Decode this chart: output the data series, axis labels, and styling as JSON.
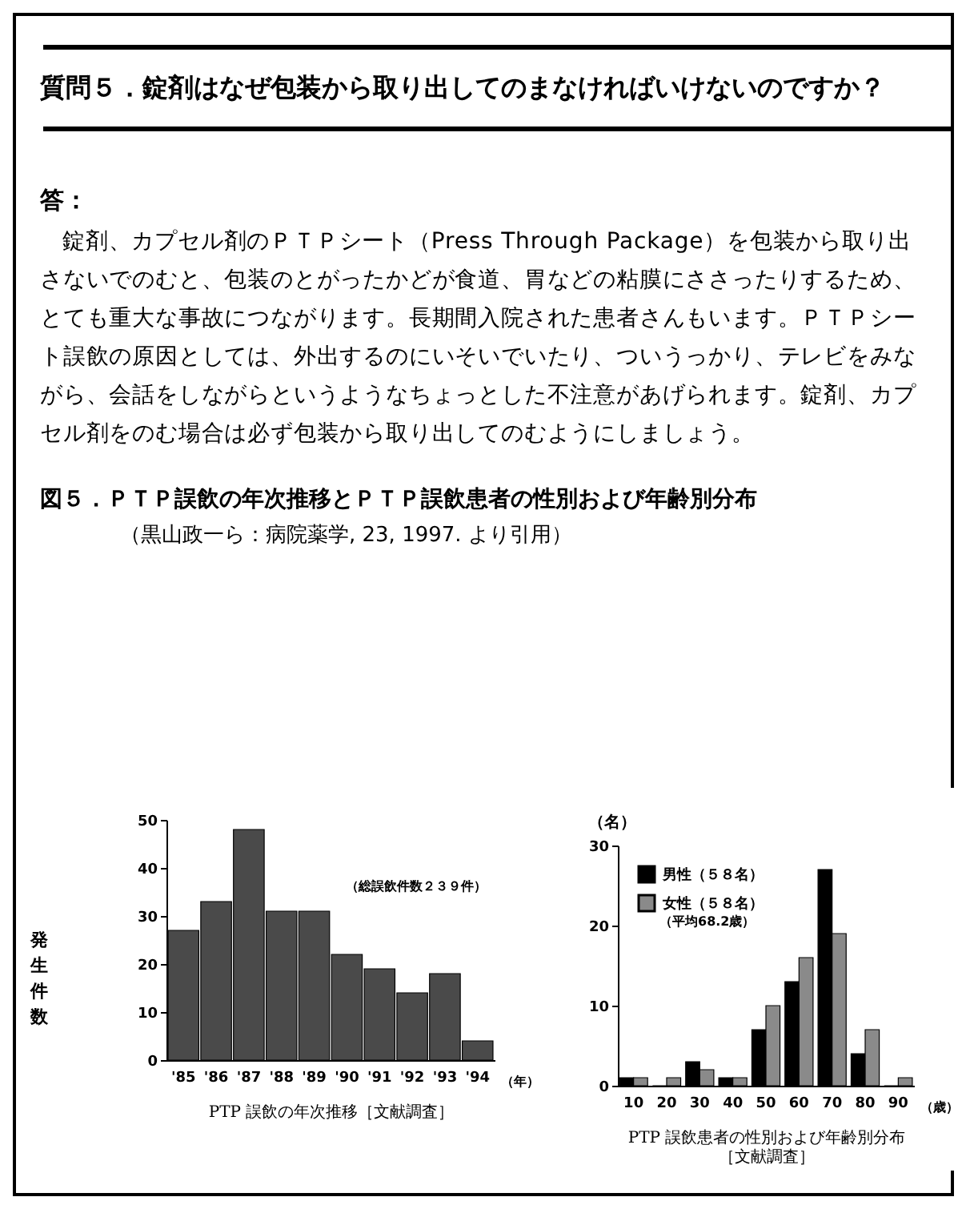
{
  "chart_data": [
    {
      "type": "bar",
      "title": "図５．ＰＴＰ誤飲の年次推移とＰＴＰ誤飲患者の性別および年齢別分布",
      "subtitle": "（黒山政一ら：病院薬学, 23, 1997. より引用）",
      "annotations": [
        "質問５．錠剤はなぜ包装から取り出してのまなければいけないのですか？",
        "答：",
        "錠剤、カプセル剤のＰＴＰシート（Press Through Package）を包装から取り出さないでのむと、包装のとがったかどが食道、胃などの粘膜にささったりするため、とても重大な事故につながります。長期間入院された患者さんもいます。ＰＴＰシート誤飲の原因としては、外出するのにいそいでいたり、ついうっかり、テレビをみながら、会話をしながらというようなちょっとした不注意があげられます。錠剤、カプセル剤をのむ場合は必ず包装から取り出してのむようにしましょう。",
        "（総誤飲件数２３９件）",
        "（年）"
      ],
      "xlabel": "PTP 誤飲の年次推移［文献調査］",
      "ylabel": "発生件数",
      "categories": [
        "'85",
        "'86",
        "'87",
        "'88",
        "'89",
        "'90",
        "'91",
        "'92",
        "'93",
        "'94"
      ],
      "values": [
        27,
        33,
        48,
        31,
        31,
        22,
        19,
        14,
        18,
        4
      ],
      "color": "#4a4a4a",
      "ylim": [
        0,
        50
      ],
      "yticks": [
        0,
        10,
        20,
        30,
        40,
        50
      ],
      "grid": false,
      "legend": false
    },
    {
      "type": "bar",
      "annotations": [
        "（平均68.2歳）",
        "（歳）"
      ],
      "xlabel": "PTP 誤飲患者の性別および年齢別分布［文献調査］",
      "ylabel": "（名）",
      "categories": [
        "10",
        "20",
        "30",
        "40",
        "50",
        "60",
        "70",
        "80",
        "90"
      ],
      "series": [
        {
          "name": "男性（５８名）",
          "color": "#000000",
          "values": [
            1,
            0,
            3,
            1,
            7,
            13,
            27,
            4,
            0
          ]
        },
        {
          "name": "女性（５８名）",
          "color": "#8a8a8a",
          "values": [
            1,
            1,
            2,
            1,
            10,
            16,
            19,
            7,
            1
          ]
        }
      ],
      "ylim": [
        0,
        30
      ],
      "yticks": [
        0,
        10,
        20,
        30
      ],
      "grid": false,
      "legend": "top left"
    }
  ]
}
